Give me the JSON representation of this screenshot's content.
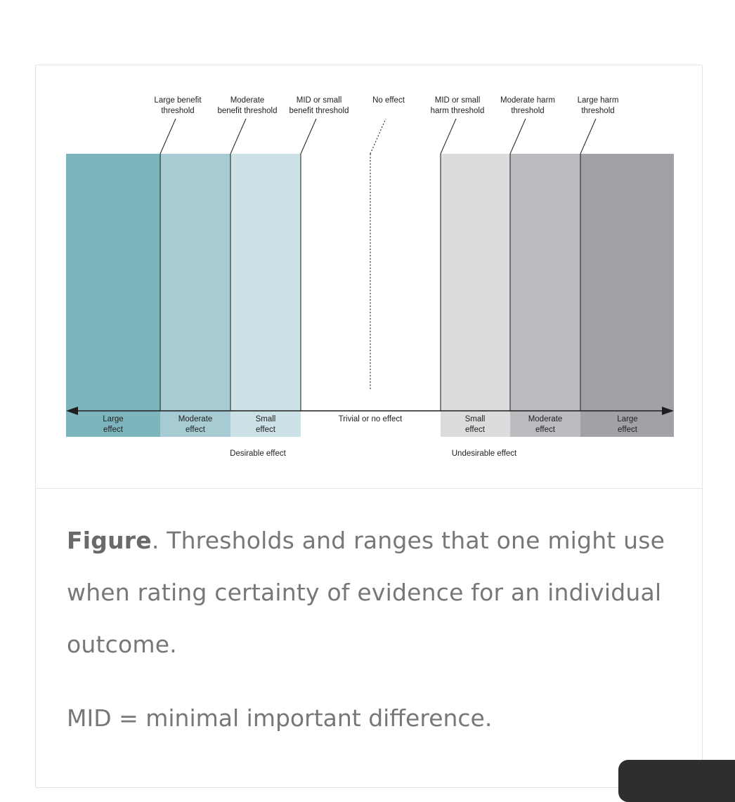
{
  "figure": {
    "threshold_labels": [
      {
        "id": "large-benefit",
        "lines": [
          "Large benefit",
          "threshold"
        ]
      },
      {
        "id": "moderate-benefit",
        "lines": [
          "Moderate",
          "benefit threshold"
        ]
      },
      {
        "id": "mid-small-benefit",
        "lines": [
          "MID or small",
          "benefit threshold"
        ]
      },
      {
        "id": "no-effect",
        "lines": [
          "No effect"
        ]
      },
      {
        "id": "mid-small-harm",
        "lines": [
          "MID or small",
          "harm threshold"
        ]
      },
      {
        "id": "moderate-harm",
        "lines": [
          "Moderate harm",
          "threshold"
        ]
      },
      {
        "id": "large-harm",
        "lines": [
          "Large harm",
          "threshold"
        ]
      }
    ],
    "zones": [
      {
        "id": "large-benefit-zone",
        "lines": [
          "Large",
          "effect"
        ],
        "color": "#7db5bc"
      },
      {
        "id": "moderate-benefit-zone",
        "lines": [
          "Moderate",
          "effect"
        ],
        "color": "#a6cbd2"
      },
      {
        "id": "small-benefit-zone",
        "lines": [
          "Small",
          "effect"
        ],
        "color": "#cde2e6"
      },
      {
        "id": "trivial-zone",
        "lines": [
          "Trivial or no effect"
        ],
        "color": "#ffffff"
      },
      {
        "id": "small-harm-zone",
        "lines": [
          "Small",
          "effect"
        ],
        "color": "#dcdcdc"
      },
      {
        "id": "moderate-harm-zone",
        "lines": [
          "Moderate",
          "effect"
        ],
        "color": "#bbbbc0"
      },
      {
        "id": "large-harm-zone",
        "lines": [
          "Large",
          "effect"
        ],
        "color": "#a2a1a6"
      }
    ],
    "group_labels": {
      "desirable": "Desirable effect",
      "undesirable": "Undesirable effect"
    }
  },
  "caption": {
    "label": "Figure",
    "text": ". Thresholds and ranges that one might use when rating certainty of evidence for an individual outcome.",
    "note": "MID = minimal important difference."
  }
}
